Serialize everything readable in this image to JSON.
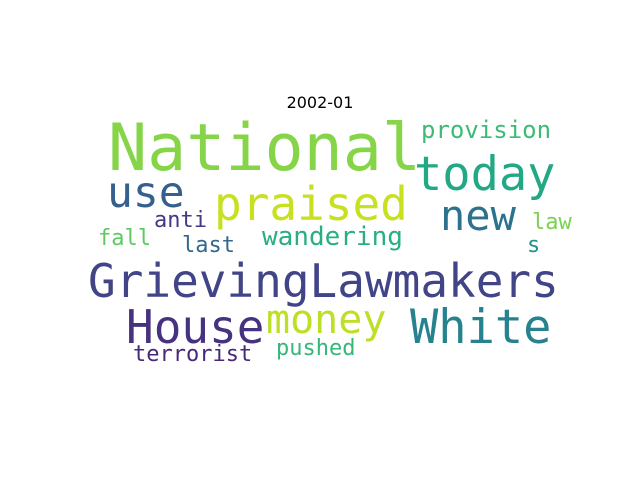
{
  "title": "2002-01",
  "words": [
    {
      "text": "National",
      "color": "#86d549"
    },
    {
      "text": "today",
      "color": "#22a884"
    },
    {
      "text": "provision",
      "color": "#3bbb75"
    },
    {
      "text": "use",
      "color": "#355f8d"
    },
    {
      "text": "praised",
      "color": "#c8e020"
    },
    {
      "text": "new",
      "color": "#2c728e"
    },
    {
      "text": "anti",
      "color": "#443983"
    },
    {
      "text": "law",
      "color": "#7ad151"
    },
    {
      "text": "fall",
      "color": "#5ec962"
    },
    {
      "text": "last",
      "color": "#31688e"
    },
    {
      "text": "wandering",
      "color": "#29af7f"
    },
    {
      "text": "s",
      "color": "#21918c"
    },
    {
      "text": "GrievingLawmakers",
      "color": "#414487"
    },
    {
      "text": "House",
      "color": "#46327e"
    },
    {
      "text": "money",
      "color": "#bddf26"
    },
    {
      "text": "White",
      "color": "#26828e"
    },
    {
      "text": "terrorist",
      "color": "#482878"
    },
    {
      "text": "pushed",
      "color": "#35b779"
    }
  ]
}
